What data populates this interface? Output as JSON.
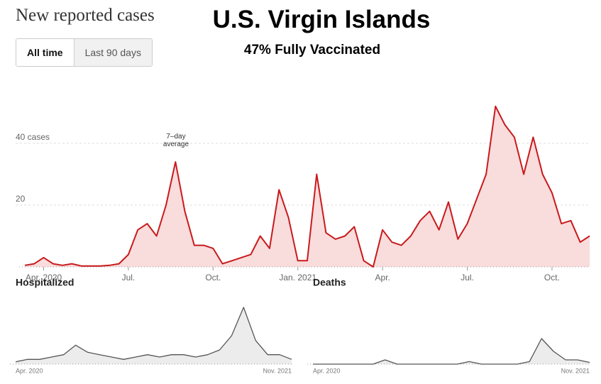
{
  "header": {
    "title": "U.S. Virgin Islands",
    "subtitle": "47% Fully Vaccinated"
  },
  "controls": [
    "All time",
    "Last 90 days"
  ],
  "chart_data": [
    {
      "type": "area",
      "title": "New reported cases",
      "annotation": "7–day average",
      "categories": [
        null,
        null,
        "Apr. 2020",
        null,
        null,
        null,
        null,
        null,
        null,
        null,
        null,
        "Jul.",
        null,
        null,
        null,
        null,
        null,
        null,
        null,
        null,
        "Oct.",
        null,
        null,
        null,
        null,
        null,
        null,
        null,
        null,
        "Jan. 2021",
        null,
        null,
        null,
        null,
        null,
        null,
        null,
        null,
        "Apr.",
        null,
        null,
        null,
        null,
        null,
        null,
        null,
        null,
        "Jul.",
        null,
        null,
        null,
        null,
        null,
        null,
        null,
        null,
        "Oct.",
        null,
        null,
        null,
        null
      ],
      "values": [
        0.5,
        1,
        3,
        1,
        0.5,
        1,
        0.3,
        0.3,
        0.3,
        0.5,
        1,
        4,
        12,
        14,
        10,
        20,
        34,
        18,
        7,
        7,
        6,
        1,
        2,
        3,
        4,
        10,
        6,
        25,
        16,
        2,
        2,
        30,
        11,
        9,
        10,
        13,
        2,
        0,
        12,
        8,
        7,
        10,
        15,
        18,
        12,
        21,
        9,
        14,
        22,
        30,
        52,
        46,
        42,
        30,
        42,
        30,
        24,
        14,
        15,
        8,
        10
      ],
      "color": "#c81a1c",
      "fill": "#f9dcdc",
      "ylim": [
        0,
        60
      ],
      "yticks": [
        20,
        {
          "value": 40,
          "label": "40 cases"
        }
      ],
      "grid": true
    },
    {
      "type": "area",
      "title": "Hospitalized",
      "categories": [
        "Apr. 2020",
        null,
        null,
        null,
        null,
        null,
        null,
        null,
        null,
        null,
        null,
        null,
        null,
        null,
        null,
        null,
        null,
        null,
        null,
        null,
        null,
        null,
        null,
        "Nov. 2021"
      ],
      "values": [
        0.5,
        1,
        1,
        1.5,
        2,
        4,
        2.5,
        2,
        1.5,
        1,
        1.5,
        2,
        1.5,
        2,
        2,
        1.5,
        2,
        3,
        6,
        12,
        5,
        2,
        2,
        1
      ],
      "color": "#555555",
      "fill": "#ececec",
      "ylim": [
        0,
        13.5
      ]
    },
    {
      "type": "area",
      "title": "Deaths",
      "categories": [
        "Apr. 2020",
        null,
        null,
        null,
        null,
        null,
        null,
        null,
        null,
        null,
        null,
        null,
        null,
        null,
        null,
        null,
        null,
        null,
        null,
        null,
        null,
        null,
        null,
        "Nov. 2021"
      ],
      "values": [
        0,
        0,
        0,
        0,
        0,
        0,
        0.5,
        0,
        0,
        0,
        0,
        0,
        0,
        0.3,
        0,
        0,
        0,
        0,
        0.3,
        3,
        1.5,
        0.5,
        0.5,
        0.2
      ],
      "color": "#555555",
      "fill": "#ececec",
      "ylim": [
        0,
        7.5
      ]
    }
  ]
}
